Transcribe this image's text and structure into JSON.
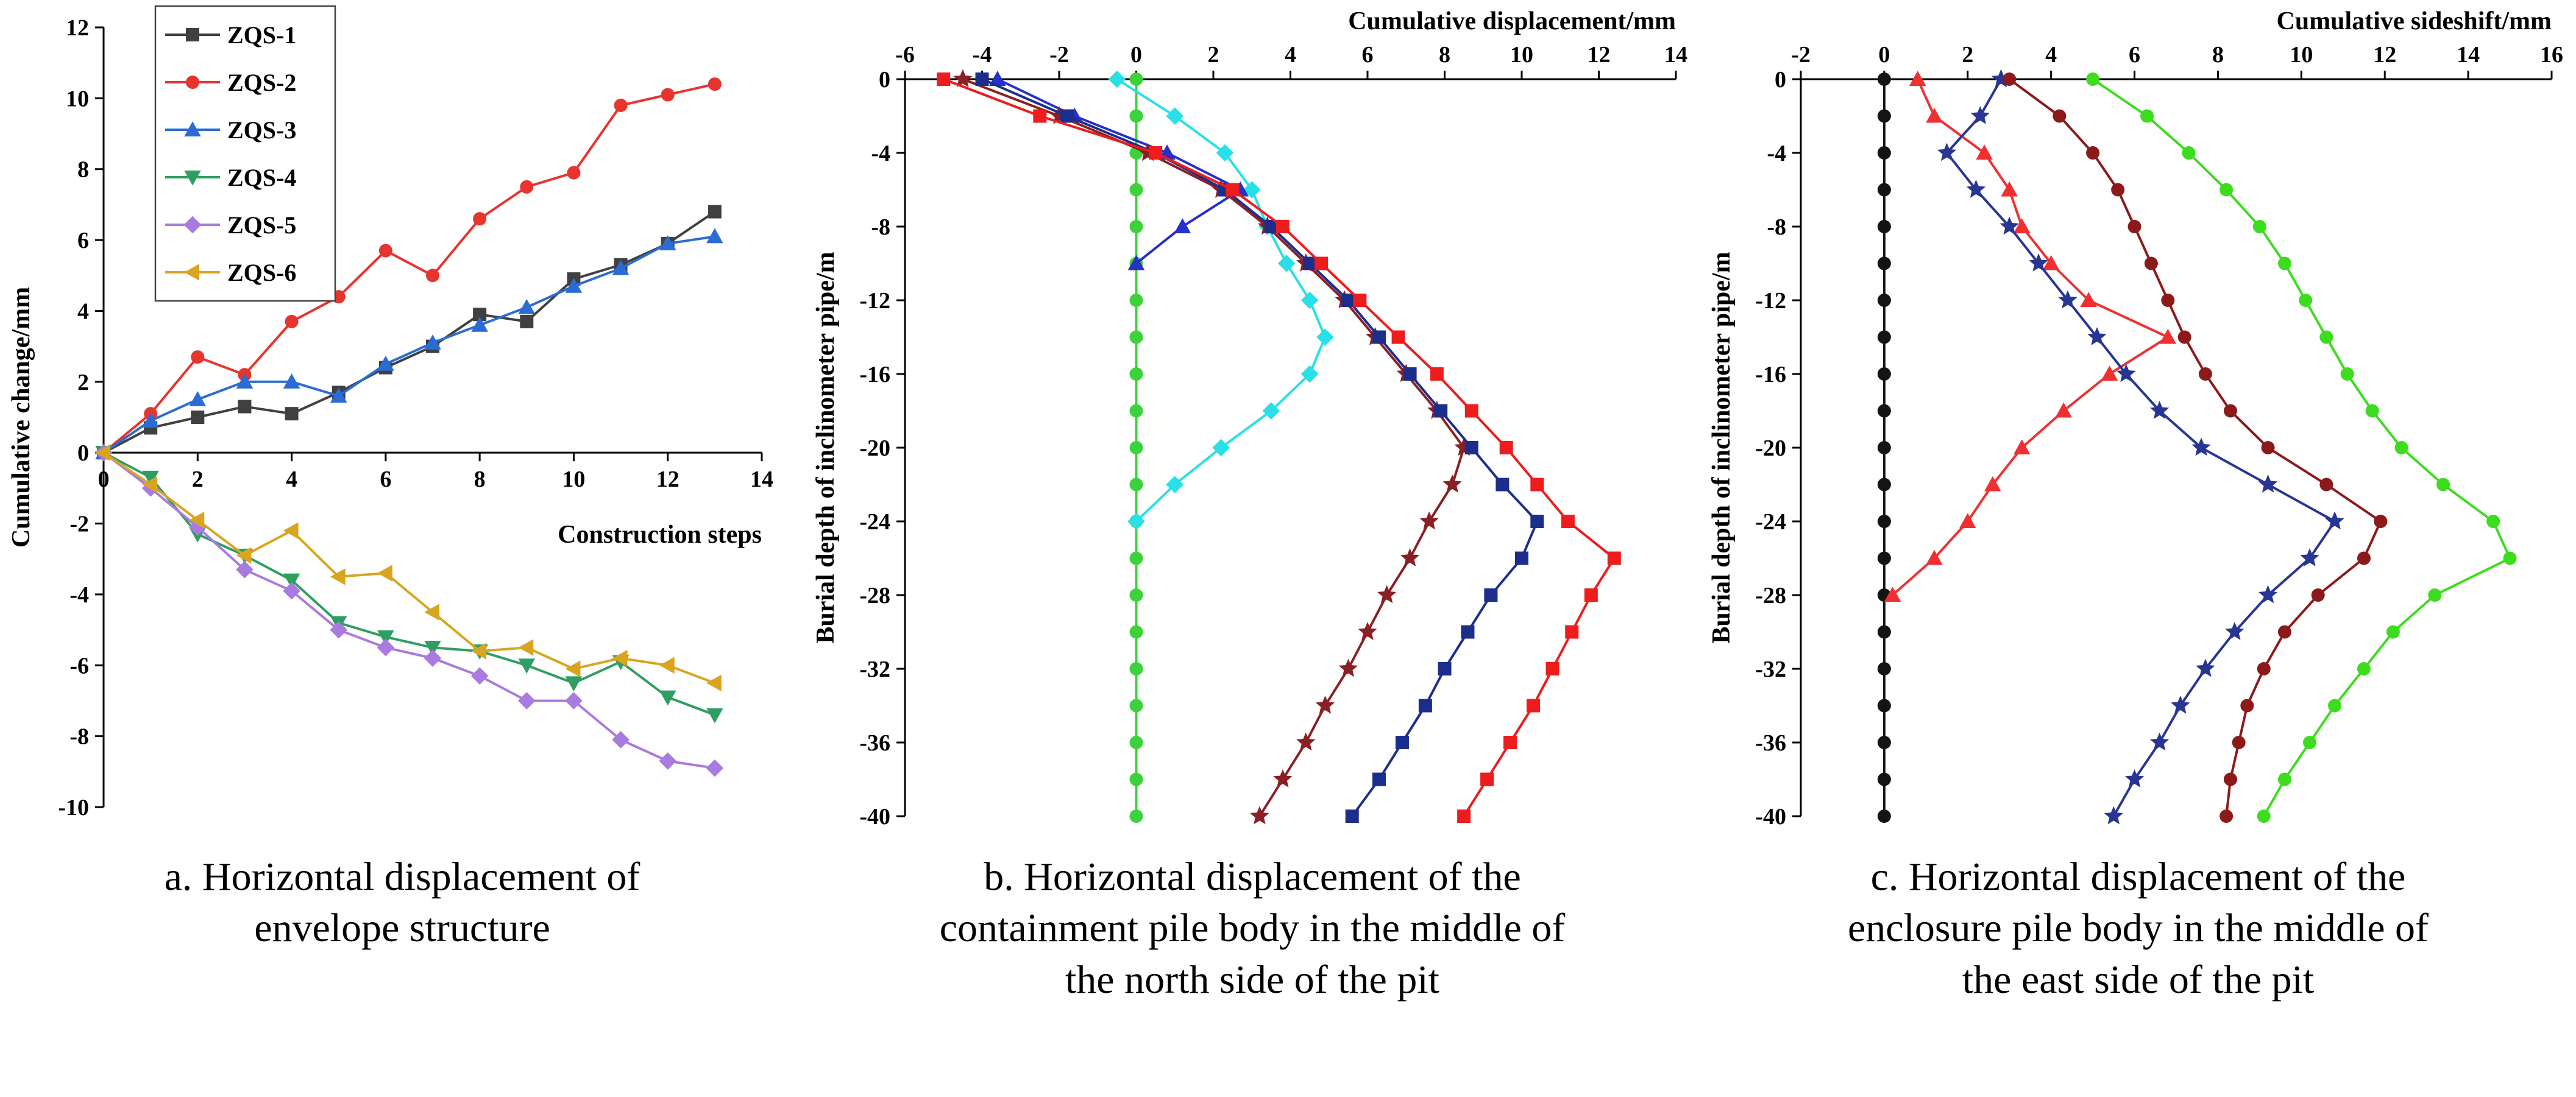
{
  "figure": {
    "captions": {
      "a": "a. Horizontal displacement of envelope structure",
      "b": "b. Horizontal displacement of the containment pile body in the middle of the north side of the pit",
      "c": "c. Horizontal displacement of the enclosure pile body in the middle of the east side of the pit"
    }
  },
  "chart_data": [
    {
      "panel": "a",
      "type": "line",
      "title": "",
      "xlabel": "Construction steps",
      "ylabel": "Cumulative change/mm",
      "xlim": [
        0,
        14
      ],
      "ylim": [
        -10,
        12
      ],
      "x_ticks": [
        0,
        2,
        4,
        6,
        8,
        10,
        12,
        14
      ],
      "y_ticks": [
        -10,
        -8,
        -6,
        -4,
        -2,
        0,
        2,
        4,
        6,
        8,
        10,
        12
      ],
      "grid": false,
      "legend_position": "top-left",
      "x": [
        0,
        1,
        2,
        3,
        4,
        5,
        6,
        7,
        8,
        9,
        10,
        11,
        12,
        13
      ],
      "series": [
        {
          "name": "ZQS-1",
          "color": "#404040",
          "marker": "square",
          "values": [
            0,
            0.7,
            1.0,
            1.3,
            1.1,
            1.7,
            2.4,
            3.0,
            3.9,
            3.7,
            4.9,
            5.3,
            5.9,
            6.8
          ]
        },
        {
          "name": "ZQS-2",
          "color": "#e8342e",
          "marker": "circle",
          "values": [
            0,
            1.1,
            2.7,
            2.2,
            3.7,
            4.4,
            5.7,
            5.0,
            6.6,
            7.5,
            7.9,
            9.8,
            10.1,
            10.4
          ]
        },
        {
          "name": "ZQS-3",
          "color": "#2b6cd4",
          "marker": "triangle-up",
          "values": [
            0,
            0.9,
            1.5,
            2.0,
            2.0,
            1.6,
            2.5,
            3.1,
            3.6,
            4.1,
            4.7,
            5.2,
            5.9,
            6.1
          ]
        },
        {
          "name": "ZQS-4",
          "color": "#2f9e63",
          "marker": "triangle-down",
          "values": [
            0,
            -0.7,
            -2.3,
            -2.9,
            -3.6,
            -4.8,
            -5.2,
            -5.5,
            -5.6,
            -6.0,
            -6.5,
            -5.9,
            -6.9,
            -7.4
          ]
        },
        {
          "name": "ZQS-5",
          "color": "#a97ae0",
          "marker": "diamond",
          "values": [
            0,
            -1.0,
            -2.1,
            -3.3,
            -3.9,
            -5.0,
            -5.5,
            -5.8,
            -6.3,
            -7.0,
            -7.0,
            -8.1,
            -8.7,
            -8.9
          ]
        },
        {
          "name": "ZQS-6",
          "color": "#d9a520",
          "marker": "triangle-left",
          "values": [
            0,
            -0.9,
            -1.9,
            -2.9,
            -2.2,
            -3.5,
            -3.4,
            -4.5,
            -5.6,
            -5.5,
            -6.1,
            -5.8,
            -6.0,
            -6.5
          ]
        }
      ]
    },
    {
      "panel": "b",
      "type": "line",
      "title": "",
      "xlabel": "Cumulative displacement/mm",
      "ylabel": "Burial depth of inclinometer pipe/m",
      "xlim": [
        -6,
        14
      ],
      "ylim": [
        0,
        -40
      ],
      "x_ticks": [
        -6,
        -4,
        -2,
        0,
        2,
        4,
        6,
        8,
        10,
        12,
        14
      ],
      "y_ticks": [
        0,
        -4,
        -8,
        -12,
        -16,
        -20,
        -24,
        -28,
        -32,
        -36,
        -40
      ],
      "grid": false,
      "legend_position": "none",
      "series": [
        {
          "name": "green-zero-line",
          "color": "#3bd23b",
          "marker": "circle",
          "depths": [
            0,
            -2,
            -4,
            -6,
            -8,
            -10,
            -12,
            -14,
            -16,
            -18,
            -20,
            -22,
            -24,
            -26,
            -28,
            -30,
            -32,
            -34,
            -36,
            -38,
            -40
          ],
          "values": [
            0,
            0,
            0,
            0,
            0,
            0,
            0,
            0,
            0,
            0,
            0,
            0,
            0,
            0,
            0,
            0,
            0,
            0,
            0,
            0,
            0
          ]
        },
        {
          "name": "cyan-diamonds",
          "color": "#27e0e8",
          "marker": "diamond",
          "depths": [
            0,
            -2,
            -4,
            -6,
            -8,
            -10,
            -12,
            -14,
            -16,
            -18,
            -20,
            -22,
            -24
          ],
          "values": [
            -0.5,
            1.0,
            2.3,
            3.0,
            3.4,
            3.9,
            4.5,
            4.9,
            4.5,
            3.5,
            2.2,
            1.0,
            0.0
          ]
        },
        {
          "name": "blue-triangles",
          "color": "#2730c8",
          "marker": "triangle-up",
          "depths": [
            0,
            -2,
            -4,
            -6,
            -8,
            -10
          ],
          "values": [
            -3.6,
            -1.6,
            0.8,
            2.7,
            1.2,
            0.0
          ]
        },
        {
          "name": "maroon-stars",
          "color": "#8a1f24",
          "marker": "star",
          "depths": [
            0,
            -2,
            -4,
            -6,
            -8,
            -10,
            -12,
            -14,
            -16,
            -18,
            -20,
            -22,
            -24,
            -26,
            -28,
            -30,
            -32,
            -34,
            -36,
            -38,
            -40
          ],
          "values": [
            -4.5,
            -2.0,
            0.3,
            2.2,
            3.4,
            4.4,
            5.4,
            6.2,
            7.0,
            7.8,
            8.5,
            8.2,
            7.6,
            7.1,
            6.5,
            6.0,
            5.5,
            4.9,
            4.4,
            3.8,
            3.2
          ]
        },
        {
          "name": "navy-squares",
          "color": "#1c2e8c",
          "marker": "square",
          "depths": [
            0,
            -2,
            -4,
            -6,
            -8,
            -10,
            -12,
            -14,
            -16,
            -18,
            -20,
            -22,
            -24,
            -26,
            -28,
            -30,
            -32,
            -34,
            -36,
            -38,
            -40
          ],
          "values": [
            -4.0,
            -1.8,
            0.5,
            2.3,
            3.5,
            4.5,
            5.5,
            6.3,
            7.1,
            7.9,
            8.7,
            9.5,
            10.4,
            10.0,
            9.2,
            8.6,
            8.0,
            7.5,
            6.9,
            6.3,
            5.6
          ]
        },
        {
          "name": "red-squares",
          "color": "#ee1c1c",
          "marker": "square",
          "depths": [
            0,
            -2,
            -4,
            -6,
            -8,
            -10,
            -12,
            -14,
            -16,
            -18,
            -20,
            -22,
            -24,
            -26,
            -28,
            -30,
            -32,
            -34,
            -36,
            -38,
            -40
          ],
          "values": [
            -5.0,
            -2.5,
            0.5,
            2.5,
            3.8,
            4.8,
            5.8,
            6.8,
            7.8,
            8.7,
            9.6,
            10.4,
            11.2,
            12.4,
            11.8,
            11.3,
            10.8,
            10.3,
            9.7,
            9.1,
            8.5
          ]
        }
      ]
    },
    {
      "panel": "c",
      "type": "line",
      "title": "",
      "xlabel": "Cumulative sideshift/mm",
      "ylabel": "Burial depth of inclinometer pipe/m",
      "xlim": [
        -2,
        16
      ],
      "ylim": [
        0,
        -40
      ],
      "x_ticks": [
        -2,
        0,
        2,
        4,
        6,
        8,
        10,
        12,
        14,
        16
      ],
      "y_ticks": [
        0,
        -4,
        -8,
        -12,
        -16,
        -20,
        -24,
        -28,
        -32,
        -36,
        -40
      ],
      "grid": false,
      "legend_position": "none",
      "series": [
        {
          "name": "black-zero-line",
          "color": "#141414",
          "marker": "circle",
          "depths": [
            0,
            -2,
            -4,
            -6,
            -8,
            -10,
            -12,
            -14,
            -16,
            -18,
            -20,
            -22,
            -24,
            -26,
            -28,
            -30,
            -32,
            -34,
            -36,
            -38,
            -40
          ],
          "values": [
            0,
            0,
            0,
            0,
            0,
            0,
            0,
            0,
            0,
            0,
            0,
            0,
            0,
            0,
            0,
            0,
            0,
            0,
            0,
            0,
            0
          ]
        },
        {
          "name": "red-triangles",
          "color": "#f03030",
          "marker": "triangle-up",
          "depths": [
            0,
            -2,
            -4,
            -6,
            -8,
            -10,
            -12,
            -14,
            -16,
            -18,
            -20,
            -22,
            -24,
            -26,
            -28
          ],
          "values": [
            0.8,
            1.2,
            2.4,
            3.0,
            3.3,
            4.0,
            4.9,
            6.8,
            5.4,
            4.3,
            3.3,
            2.6,
            2.0,
            1.2,
            0.2
          ]
        },
        {
          "name": "navy-stars",
          "color": "#283593",
          "marker": "star",
          "depths": [
            0,
            -2,
            -4,
            -6,
            -8,
            -10,
            -12,
            -14,
            -16,
            -18,
            -20,
            -22,
            -24,
            -26,
            -28,
            -30,
            -32,
            -34,
            -36,
            -38,
            -40
          ],
          "values": [
            2.8,
            2.3,
            1.5,
            2.2,
            3.0,
            3.7,
            4.4,
            5.1,
            5.8,
            6.6,
            7.6,
            9.2,
            10.8,
            10.2,
            9.2,
            8.4,
            7.7,
            7.1,
            6.6,
            6.0,
            5.5
          ]
        },
        {
          "name": "maroon-circles",
          "color": "#8c1a1a",
          "marker": "circle",
          "depths": [
            0,
            -2,
            -4,
            -6,
            -8,
            -10,
            -12,
            -14,
            -16,
            -18,
            -20,
            -22,
            -24,
            -26,
            -28,
            -30,
            -32,
            -34,
            -36,
            -38,
            -40
          ],
          "values": [
            3.0,
            4.2,
            5.0,
            5.6,
            6.0,
            6.4,
            6.8,
            7.2,
            7.7,
            8.3,
            9.2,
            10.6,
            11.9,
            11.5,
            10.4,
            9.6,
            9.1,
            8.7,
            8.5,
            8.3,
            8.2
          ]
        },
        {
          "name": "green-circles",
          "color": "#3ddc1e",
          "marker": "circle",
          "depths": [
            0,
            -2,
            -4,
            -6,
            -8,
            -10,
            -12,
            -14,
            -16,
            -18,
            -20,
            -22,
            -24,
            -26,
            -28,
            -30,
            -32,
            -34,
            -36,
            -38,
            -40
          ],
          "values": [
            5.0,
            6.3,
            7.3,
            8.2,
            9.0,
            9.6,
            10.1,
            10.6,
            11.1,
            11.7,
            12.4,
            13.4,
            14.6,
            15.0,
            13.2,
            12.2,
            11.5,
            10.8,
            10.2,
            9.6,
            9.1
          ]
        }
      ]
    }
  ]
}
